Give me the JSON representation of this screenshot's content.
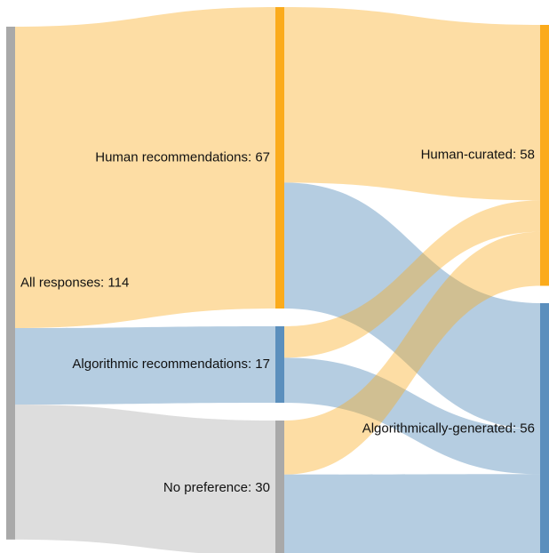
{
  "chart_data": {
    "type": "sankey",
    "nodes": [
      {
        "label": "All responses: 114",
        "value": 114,
        "color": "#a9a9a9"
      },
      {
        "label": "Human recommendations: 67",
        "value": 67,
        "color": "#fbab1c"
      },
      {
        "label": "Algorithmic recommendations: 17",
        "value": 17,
        "color": "#5b8fbd"
      },
      {
        "label": "No preference: 30",
        "value": 30,
        "color": "#a9a9a9"
      },
      {
        "label": "Human-curated: 58",
        "value": 58,
        "color": "#fbab1c"
      },
      {
        "label": "Algorithmically-generated: 56",
        "value": 56,
        "color": "#5b8fbd"
      }
    ],
    "links": [
      {
        "source": 0,
        "target": 1,
        "value": 67,
        "color": "rgba(251,171,28,0.4)"
      },
      {
        "source": 0,
        "target": 2,
        "value": 17,
        "color": "rgba(70,130,180,0.4)"
      },
      {
        "source": 0,
        "target": 3,
        "value": 30,
        "color": "rgba(169,169,169,0.4)"
      },
      {
        "source": 1,
        "target": 4,
        "value": 39,
        "color": "rgba(251,171,28,0.4)"
      },
      {
        "source": 1,
        "target": 5,
        "value": 28,
        "color": "rgba(70,130,180,0.4)"
      },
      {
        "source": 2,
        "target": 4,
        "value": 7,
        "color": "rgba(251,171,28,0.4)"
      },
      {
        "source": 2,
        "target": 5,
        "value": 10,
        "color": "rgba(70,130,180,0.4)"
      },
      {
        "source": 3,
        "target": 4,
        "value": 12,
        "color": "rgba(251,171,28,0.4)"
      },
      {
        "source": 3,
        "target": 5,
        "value": 18,
        "color": "rgba(70,130,180,0.4)"
      }
    ]
  }
}
